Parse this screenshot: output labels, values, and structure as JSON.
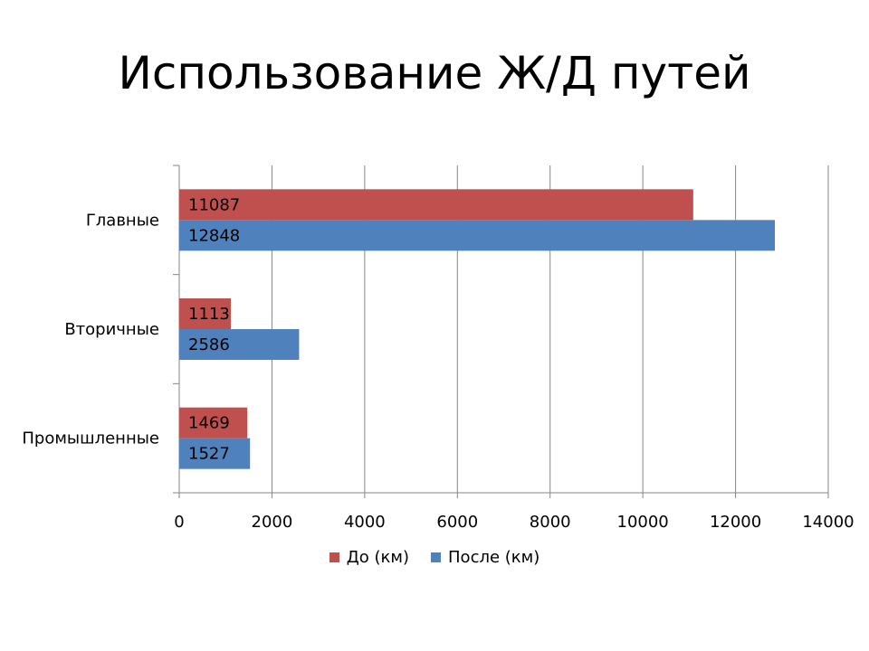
{
  "title": "Использование Ж/Д путей",
  "chart_data": {
    "type": "bar",
    "orientation": "horizontal",
    "title": "Использование Ж/Д путей",
    "categories": [
      "Главные",
      "Вторичные",
      "Промышленные"
    ],
    "series": [
      {
        "name": "До (км)",
        "color": "#c0504d",
        "values": [
          11087,
          1113,
          1469
        ]
      },
      {
        "name": "После (км)",
        "color": "#4f81bd",
        "values": [
          12848,
          2586,
          1527
        ]
      }
    ],
    "xlim": [
      0,
      14000
    ],
    "xticks": [
      "0",
      "2000",
      "4000",
      "6000",
      "8000",
      "10000",
      "12000",
      "14000"
    ],
    "grid": true,
    "legend_position": "bottom",
    "data_labels": true
  }
}
